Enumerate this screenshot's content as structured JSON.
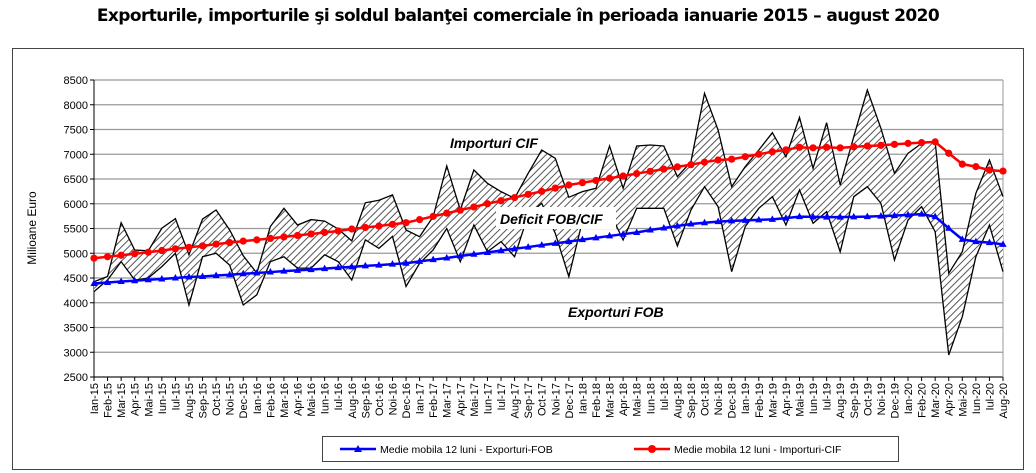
{
  "chart_data": {
    "type": "line",
    "title": "Exporturile, importurile şi soldul balanţei comerciale în perioada ianuarie 2015 – august 2020",
    "xlabel": "",
    "ylabel": "Milioane Euro",
    "ylim": [
      2500,
      8500
    ],
    "yticks": [
      2500,
      3000,
      3500,
      4000,
      4500,
      5000,
      5500,
      6000,
      6500,
      7000,
      7500,
      8000,
      8500
    ],
    "grid": true,
    "legend_position": "bottom",
    "categories": [
      "Ian-15",
      "Feb-15",
      "Mar-15",
      "Apr-15",
      "Mai-15",
      "Iun-15",
      "Iul-15",
      "Aug-15",
      "Sep-15",
      "Oct-15",
      "Noi-15",
      "Dec-15",
      "Ian-16",
      "Feb-16",
      "Mar-16",
      "Apr-16",
      "Mai-16",
      "Iun-16",
      "Iul-16",
      "Aug-16",
      "Sep-16",
      "Oct-16",
      "Noi-16",
      "Dec-16",
      "Ian-17",
      "Feb-17",
      "Mar-17",
      "Apr-17",
      "Mai-17",
      "Iun-17",
      "Iul-17",
      "Aug-17",
      "Sep-17",
      "Oct-17",
      "Noi-17",
      "Dec-17",
      "Ian-18",
      "Feb-18",
      "Mar-18",
      "Apr-18",
      "Mai-18",
      "Iun-18",
      "Iul-18",
      "Aug-18",
      "Sep-18",
      "Oct-18",
      "Noi-18",
      "Dec-18",
      "Ian-19",
      "Feb-19",
      "Mar-19",
      "Apr-19",
      "Mai-19",
      "Iun-19",
      "Iul-19",
      "Aug-19",
      "Sep-19",
      "Oct-19",
      "Noi-19",
      "Dec-19",
      "Ian-20",
      "Feb-20",
      "Mar-20",
      "Apr-20",
      "Mai-20",
      "Iun-20",
      "Iul-20",
      "Aug-20"
    ],
    "series": [
      {
        "name": "Importuri CIF",
        "color": "#000000",
        "values": [
          4425,
          4530,
          5617,
          5066,
          5050,
          5505,
          5700,
          4970,
          5690,
          5874,
          5470,
          4950,
          4600,
          5540,
          5908,
          5570,
          5680,
          5650,
          5490,
          5250,
          6020,
          6070,
          6180,
          5470,
          5335,
          5740,
          6763,
          5874,
          6682,
          6413,
          6245,
          6110,
          6615,
          7086,
          6918,
          6130,
          6245,
          6312,
          7167,
          6312,
          7167,
          7187,
          7167,
          6547,
          6850,
          8230,
          7490,
          6345,
          6750,
          7086,
          7435,
          6951,
          7745,
          6716,
          7637,
          6379,
          7355,
          8298,
          7523,
          6615,
          7019,
          7220,
          7250,
          4595,
          5030,
          6211,
          6884,
          6143
        ]
      },
      {
        "name": "Exporturi FOB",
        "color": "#000000",
        "values": [
          4224,
          4460,
          4830,
          4460,
          4500,
          4730,
          5000,
          3955,
          4930,
          5000,
          4760,
          3955,
          4160,
          4830,
          4930,
          4700,
          4700,
          4970,
          4830,
          4460,
          5270,
          5100,
          5340,
          4330,
          4797,
          5070,
          5500,
          4830,
          5570,
          5030,
          5235,
          4930,
          5773,
          6010,
          5403,
          4527,
          5650,
          5750,
          5840,
          5268,
          5908,
          5908,
          5908,
          5147,
          5874,
          6345,
          5941,
          4628,
          5537,
          5908,
          6143,
          5570,
          6278,
          5605,
          5840,
          5030,
          6143,
          6345,
          6010,
          4864,
          5672,
          5941,
          5436,
          2945,
          3719,
          4930,
          5570,
          4628
        ]
      },
      {
        "name": "Medie mobila 12 luni - Exporturi-FOB",
        "color": "#0000ff",
        "marker": "triangle",
        "values": [
          4390,
          4410,
          4430,
          4445,
          4465,
          4480,
          4500,
          4520,
          4530,
          4550,
          4565,
          4585,
          4600,
          4620,
          4640,
          4655,
          4670,
          4690,
          4710,
          4725,
          4745,
          4760,
          4780,
          4797,
          4835,
          4870,
          4905,
          4945,
          4980,
          5015,
          5055,
          5090,
          5125,
          5165,
          5200,
          5235,
          5275,
          5310,
          5350,
          5385,
          5420,
          5470,
          5510,
          5550,
          5590,
          5617,
          5640,
          5655,
          5665,
          5675,
          5685,
          5710,
          5740,
          5735,
          5730,
          5730,
          5735,
          5740,
          5750,
          5760,
          5775,
          5790,
          5740,
          5505,
          5280,
          5235,
          5215,
          5180
        ]
      },
      {
        "name": "Medie mobila 12 luni - Importuri-CIF",
        "color": "#ff0000",
        "marker": "circle",
        "values": [
          4900,
          4930,
          4960,
          4990,
          5020,
          5055,
          5090,
          5120,
          5150,
          5185,
          5215,
          5245,
          5270,
          5300,
          5330,
          5360,
          5390,
          5420,
          5450,
          5490,
          5520,
          5550,
          5585,
          5617,
          5680,
          5745,
          5810,
          5870,
          5935,
          6000,
          6060,
          6125,
          6190,
          6250,
          6315,
          6379,
          6425,
          6470,
          6515,
          6560,
          6610,
          6655,
          6700,
          6745,
          6790,
          6840,
          6884,
          6900,
          6950,
          7000,
          7050,
          7090,
          7140,
          7130,
          7140,
          7130,
          7150,
          7167,
          7180,
          7200,
          7220,
          7235,
          7250,
          7020,
          6800,
          6750,
          6680,
          6660
        ]
      }
    ],
    "annotations": {
      "imports": "Importuri CIF",
      "deficit": "Deficit FOB/CIF",
      "exports": "Exporturi FOB"
    },
    "legend": [
      "Medie mobila 12 luni - Exporturi-FOB",
      "Medie mobila 12 luni - Importuri-CIF"
    ]
  }
}
